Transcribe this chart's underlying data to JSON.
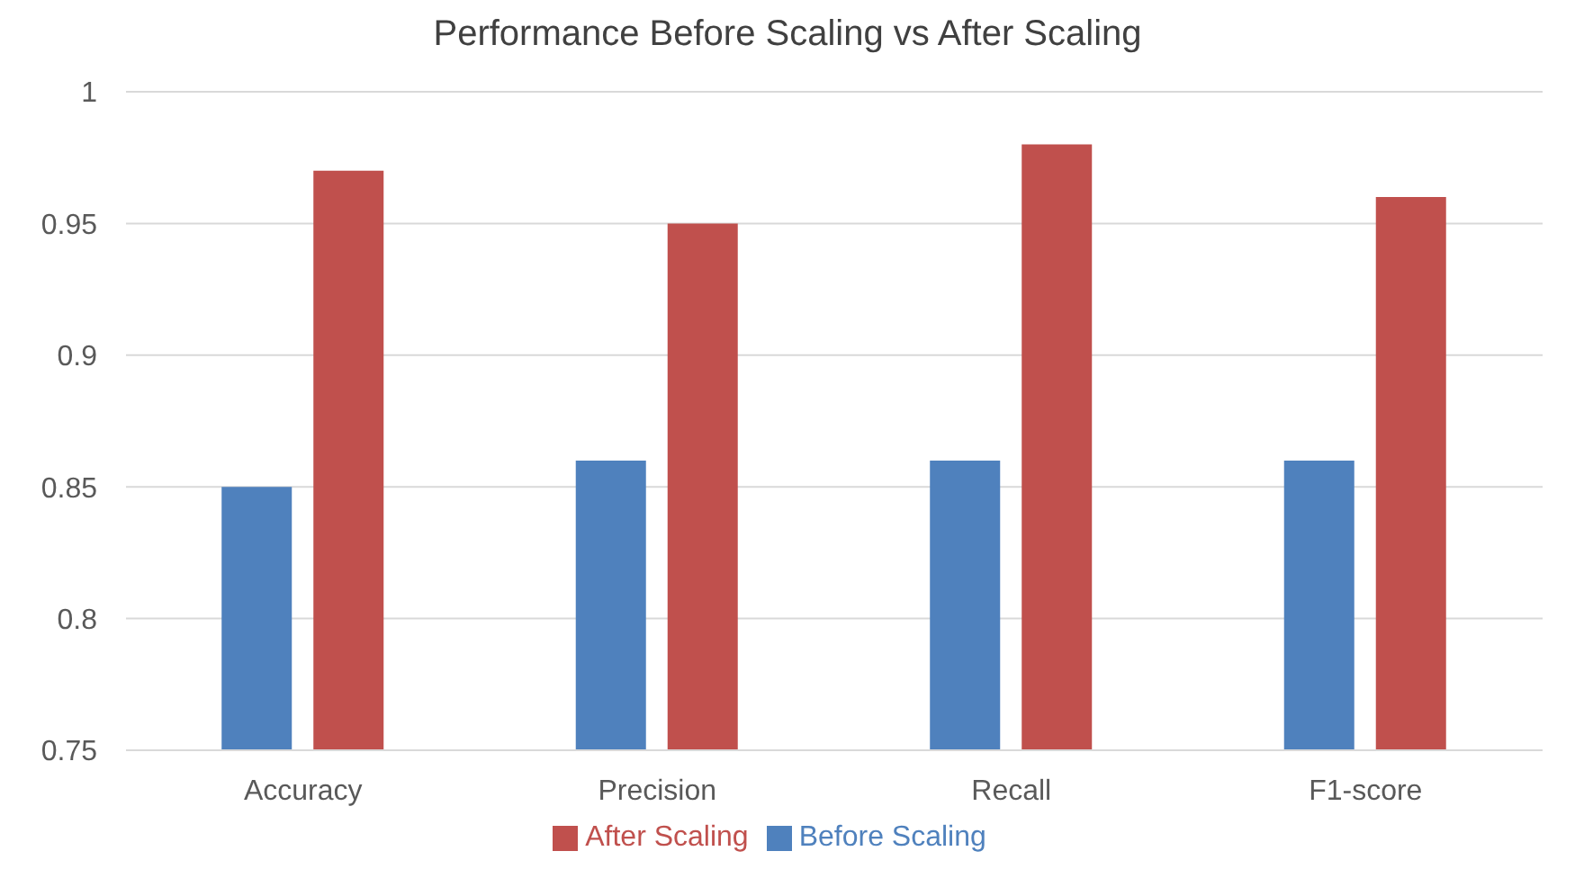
{
  "chart_data": {
    "type": "bar",
    "title": "Performance Before Scaling vs After Scaling",
    "categories": [
      "Accuracy",
      "Precision",
      "Recall",
      "F1-score"
    ],
    "series": [
      {
        "name": "Before Scaling",
        "color": "#4f81bd",
        "values": [
          0.85,
          0.86,
          0.86,
          0.86
        ]
      },
      {
        "name": "After Scaling",
        "color": "#c0504d",
        "values": [
          0.97,
          0.95,
          0.98,
          0.96
        ]
      }
    ],
    "ylim": [
      0.75,
      1
    ],
    "yticks": [
      0.75,
      0.8,
      0.85,
      0.9,
      0.95,
      1
    ],
    "grid": "y",
    "legend": "bottom"
  }
}
